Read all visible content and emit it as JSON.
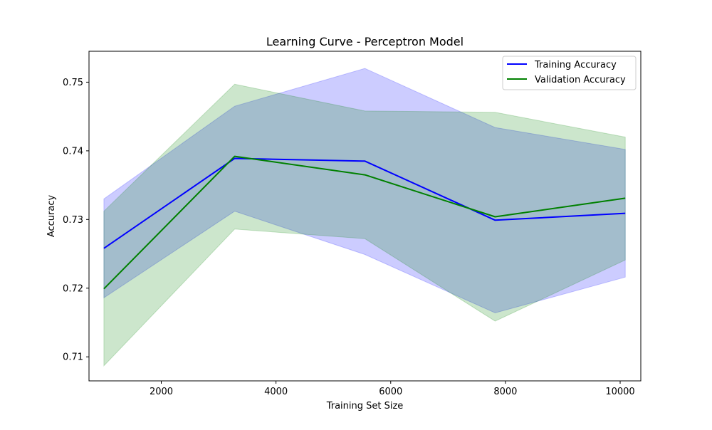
{
  "chart_data": {
    "type": "line",
    "title": "Learning Curve - Perceptron Model",
    "xlabel": "Training Set Size",
    "ylabel": "Accuracy",
    "xlim": [
      740,
      10360
    ],
    "ylim": [
      0.7065,
      0.7545
    ],
    "xticks": [
      2000,
      4000,
      6000,
      8000,
      10000
    ],
    "xtick_labels": [
      "2000",
      "4000",
      "6000",
      "8000",
      "10000"
    ],
    "yticks": [
      0.71,
      0.72,
      0.73,
      0.74,
      0.75
    ],
    "ytick_labels": [
      "0.71",
      "0.72",
      "0.73",
      "0.74",
      "0.75"
    ],
    "grid": false,
    "legend_position": "top-right",
    "x": [
      1000,
      3280,
      5550,
      7820,
      10090
    ],
    "series": [
      {
        "name": "Training Accuracy",
        "color": "#0000ff",
        "band_color": "#0000ff",
        "band_opacity": 0.2,
        "values": [
          0.7258,
          0.7389,
          0.7385,
          0.7299,
          0.7309
        ],
        "lower": [
          0.7186,
          0.7312,
          0.7249,
          0.7164,
          0.7216
        ],
        "upper": [
          0.733,
          0.7465,
          0.752,
          0.7434,
          0.7402
        ]
      },
      {
        "name": "Validation Accuracy",
        "color": "#008000",
        "band_color": "#008000",
        "band_opacity": 0.2,
        "values": [
          0.7199,
          0.7392,
          0.7365,
          0.7304,
          0.7331
        ],
        "lower": [
          0.7087,
          0.7286,
          0.7272,
          0.7152,
          0.7241
        ],
        "upper": [
          0.7312,
          0.7497,
          0.7458,
          0.7456,
          0.742
        ]
      }
    ]
  }
}
